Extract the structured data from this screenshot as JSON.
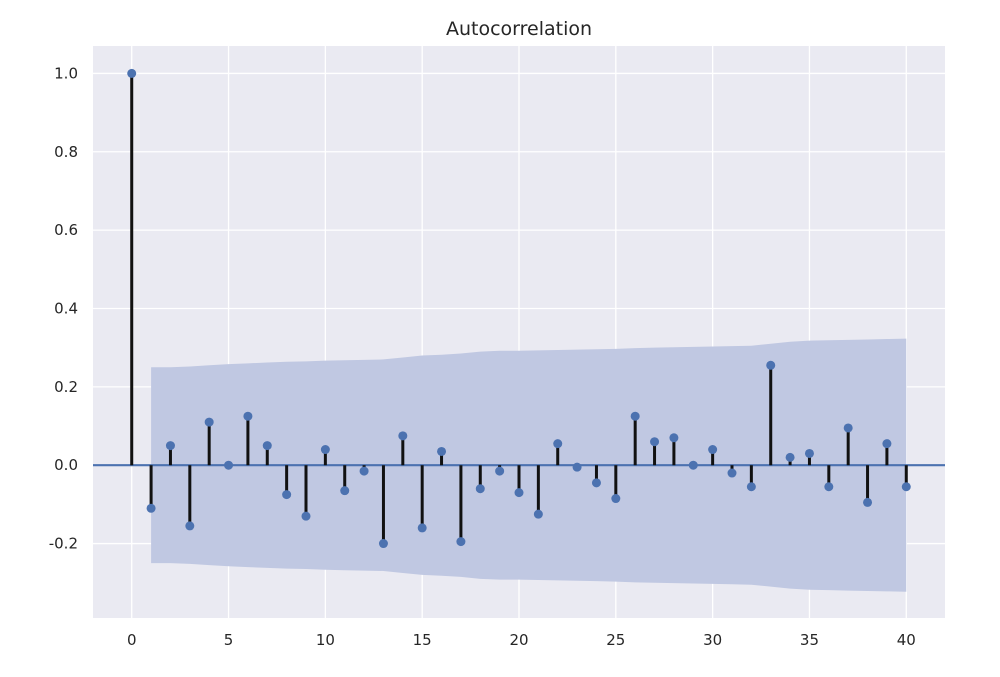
{
  "chart_data": {
    "type": "stem",
    "title": "Autocorrelation",
    "xlabel": "",
    "ylabel": "",
    "xlim": [
      -2,
      42
    ],
    "ylim": [
      -0.39,
      1.07
    ],
    "x_ticks": [
      "0",
      "5",
      "10",
      "15",
      "20",
      "25",
      "30",
      "35",
      "40"
    ],
    "y_ticks": [
      "1.0",
      "0.8",
      "0.6",
      "0.4",
      "0.2",
      "0.0",
      "-0.2"
    ],
    "x_tick_values": [
      0,
      5,
      10,
      15,
      20,
      25,
      30,
      35,
      40
    ],
    "y_tick_values": [
      1.0,
      0.8,
      0.6,
      0.4,
      0.2,
      0.0,
      -0.2
    ],
    "grid": true,
    "lags": [
      0,
      1,
      2,
      3,
      4,
      5,
      6,
      7,
      8,
      9,
      10,
      11,
      12,
      13,
      14,
      15,
      16,
      17,
      18,
      19,
      20,
      21,
      22,
      23,
      24,
      25,
      26,
      27,
      28,
      29,
      30,
      31,
      32,
      33,
      34,
      35,
      36,
      37,
      38,
      39,
      40
    ],
    "acf": [
      1.0,
      -0.11,
      0.05,
      -0.155,
      0.11,
      0.0,
      0.125,
      0.05,
      -0.075,
      -0.13,
      0.04,
      -0.065,
      -0.015,
      -0.2,
      0.075,
      -0.16,
      0.035,
      -0.195,
      -0.06,
      -0.015,
      -0.07,
      -0.125,
      0.055,
      -0.005,
      -0.045,
      -0.085,
      0.125,
      0.06,
      0.07,
      0.0,
      0.04,
      -0.02,
      -0.055,
      0.255,
      0.02,
      0.03,
      -0.055,
      0.095,
      -0.095,
      0.055,
      -0.055
    ],
    "confidence_band": [
      0,
      0.25,
      0.25,
      0.252,
      0.255,
      0.258,
      0.26,
      0.262,
      0.264,
      0.265,
      0.267,
      0.268,
      0.269,
      0.27,
      0.275,
      0.28,
      0.282,
      0.285,
      0.29,
      0.292,
      0.292,
      0.293,
      0.294,
      0.295,
      0.296,
      0.297,
      0.299,
      0.3,
      0.301,
      0.302,
      0.303,
      0.304,
      0.305,
      0.31,
      0.315,
      0.318,
      0.319,
      0.32,
      0.321,
      0.322,
      0.323
    ],
    "colors": {
      "plot_background": "#eaeaf2",
      "grid": "#ffffff",
      "band": "#c0c8e2",
      "stem": "#111111",
      "marker": "#4c72b0",
      "zero_line": "#4c72b0"
    }
  }
}
